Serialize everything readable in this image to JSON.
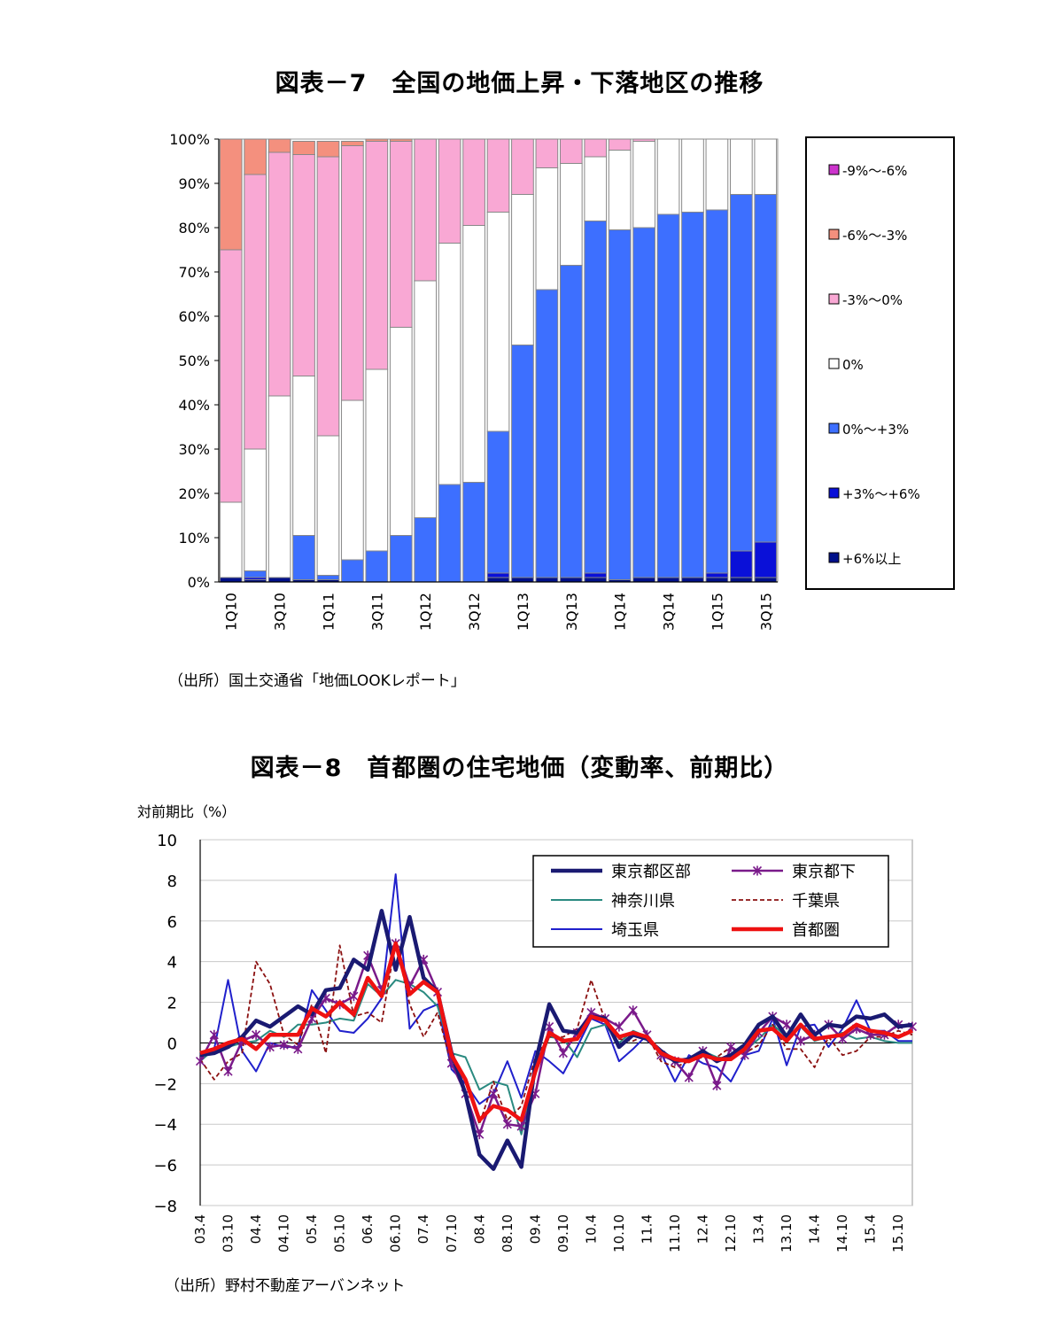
{
  "figure1": {
    "title": "図表－7　全国の地価上昇・下落地区の推移",
    "source": "（出所）国土交通省「地価LOOKレポート」",
    "colors": {
      "-9%～-6%": "#cc33cc",
      "-6%～-3%": "#f4907e",
      "-3%～0%": "#f9a8d4",
      "0%": "#ffffff",
      "0%～+3%": "#3d6fff",
      "+3%～+6%": "#0a10d8",
      "+6%以上": "#00108a"
    }
  },
  "figure2": {
    "title": "図表－8　首都圏の住宅地価（変動率、前期比）",
    "ylabel": "対前期比（%）",
    "source": "（出所）野村不動産アーバンネット",
    "colors": {
      "東京都区部": "#1a1a72",
      "東京都下": "#7a1a8a",
      "神奈川県": "#2a8a80",
      "千葉県": "#8b1010",
      "埼玉県": "#2020cc",
      "首都圏": "#ee1111"
    }
  },
  "chart_data": [
    {
      "type": "bar",
      "stacked": true,
      "title": "図表－7　全国の地価上昇・下落地区の推移",
      "categories": [
        "1Q10",
        "2Q10",
        "3Q10",
        "4Q10",
        "1Q11",
        "2Q11",
        "3Q11",
        "4Q11",
        "1Q12",
        "2Q12",
        "3Q12",
        "4Q12",
        "1Q13",
        "2Q13",
        "3Q13",
        "4Q13",
        "1Q14",
        "2Q14",
        "3Q14",
        "4Q14",
        "1Q15",
        "2Q15",
        "3Q15"
      ],
      "x_tick_labels": [
        "1Q10",
        "3Q10",
        "1Q11",
        "3Q11",
        "1Q12",
        "3Q12",
        "1Q13",
        "3Q13",
        "1Q14",
        "3Q14",
        "1Q15",
        "3Q15"
      ],
      "y_ticks": [
        "0%",
        "10%",
        "20%",
        "30%",
        "40%",
        "50%",
        "60%",
        "70%",
        "80%",
        "90%",
        "100%"
      ],
      "ylim": [
        0,
        100
      ],
      "grid": false,
      "legend_position": "right",
      "series": [
        {
          "name": "+6%以上",
          "values": [
            1,
            0.5,
            1,
            0.5,
            0.5,
            0,
            0,
            0,
            0,
            0,
            0,
            1,
            1,
            1,
            1,
            1,
            0.5,
            1,
            1,
            1,
            1,
            1,
            1
          ]
        },
        {
          "name": "+3%～+6%",
          "values": [
            0,
            0.5,
            0,
            0,
            0,
            0,
            0,
            0,
            0,
            0,
            0,
            1,
            0,
            0,
            0,
            1,
            0,
            0,
            0,
            0,
            1,
            6,
            8
          ]
        },
        {
          "name": "0%～+3%",
          "values": [
            0,
            1.5,
            0,
            10,
            1,
            5,
            7,
            10.5,
            14.5,
            22,
            22.5,
            32,
            52.5,
            65,
            70.5,
            79.5,
            79,
            79,
            82,
            82.5,
            82,
            80.5,
            78.5
          ]
        },
        {
          "name": "0%",
          "values": [
            17,
            27.5,
            41,
            36,
            31.5,
            36,
            41,
            47,
            53.5,
            54.5,
            58,
            49.5,
            34,
            27.5,
            23,
            14.5,
            18,
            19.5,
            17,
            16.5,
            16,
            12.5,
            12.5
          ]
        },
        {
          "name": "-3%～0%",
          "values": [
            57,
            62,
            55,
            50,
            63,
            57.5,
            51.5,
            42,
            32,
            23.5,
            19.5,
            16.5,
            12.5,
            6.5,
            5.5,
            4,
            2.5,
            0.5,
            0,
            0,
            0,
            0,
            0
          ]
        },
        {
          "name": "-6%～-3%",
          "values": [
            25,
            8,
            3,
            3,
            3.5,
            1,
            0.5,
            0.5,
            0,
            0,
            0,
            0,
            0,
            0,
            0,
            0,
            0,
            0,
            0,
            0,
            0,
            0,
            0
          ]
        },
        {
          "name": "-9%～-6%",
          "values": [
            0,
            0,
            0,
            0,
            0,
            0,
            0,
            0,
            0,
            0,
            0,
            0,
            0,
            0,
            0,
            0,
            0,
            0,
            0,
            0,
            0,
            0,
            0
          ]
        }
      ]
    },
    {
      "type": "line",
      "title": "図表－8　首都圏の住宅地価（変動率、前期比）",
      "ylabel": "対前期比（%）",
      "ylim": [
        -8,
        10
      ],
      "y_ticks": [
        10,
        8,
        6,
        4,
        2,
        0,
        -2,
        -4,
        -6,
        -8
      ],
      "grid": true,
      "legend_position": "top-right",
      "x": [
        "03.4",
        "03.7",
        "03.10",
        "04.1",
        "04.4",
        "04.7",
        "04.10",
        "05.1",
        "05.4",
        "05.7",
        "05.10",
        "06.1",
        "06.4",
        "06.7",
        "06.10",
        "07.1",
        "07.4",
        "07.7",
        "07.10",
        "08.1",
        "08.4",
        "08.7",
        "08.10",
        "09.1",
        "09.4",
        "09.7",
        "09.10",
        "10.1",
        "10.4",
        "10.7",
        "10.10",
        "11.1",
        "11.4",
        "11.7",
        "11.10",
        "12.1",
        "12.4",
        "12.7",
        "12.10",
        "13.1",
        "13.4",
        "13.7",
        "13.10",
        "14.1",
        "14.4",
        "14.7",
        "14.10",
        "15.1",
        "15.4",
        "15.7",
        "15.10",
        "16.1"
      ],
      "x_tick_labels": [
        "03.4",
        "03.10",
        "04.4",
        "04.10",
        "05.4",
        "05.10",
        "06.4",
        "06.10",
        "07.4",
        "07.10",
        "08.4",
        "08.10",
        "09.4",
        "09.10",
        "10.4",
        "10.10",
        "11.4",
        "11.10",
        "12.4",
        "12.10",
        "13.4",
        "13.10",
        "14.4",
        "14.10",
        "15.4",
        "15.10"
      ],
      "series": [
        {
          "name": "東京都区部",
          "values": [
            -0.6,
            -0.5,
            -0.2,
            0.3,
            1.1,
            0.8,
            1.3,
            1.8,
            1.4,
            2.6,
            2.7,
            4.1,
            3.6,
            6.5,
            3.6,
            6.2,
            3.2,
            2.5,
            -0.5,
            -2.5,
            -5.5,
            -6.2,
            -4.8,
            -6.1,
            -1,
            1.9,
            0.6,
            0.5,
            1.3,
            1.2,
            -0.2,
            0.4,
            0.2,
            -0.4,
            -0.9,
            -0.8,
            -0.4,
            -0.9,
            -0.6,
            -0.1,
            0.9,
            1.3,
            0.3,
            1.4,
            0.4,
            0.9,
            0.8,
            1.3,
            1.2,
            1.4,
            0.8,
            0.9
          ]
        },
        {
          "name": "東京都下",
          "values": [
            -0.9,
            0.4,
            -1.4,
            0.1,
            0.4,
            -0.2,
            -0.1,
            -0.3,
            1.2,
            2.2,
            1.9,
            2.3,
            4.3,
            2.6,
            4.9,
            2.8,
            4.1,
            2.5,
            -1,
            -2.5,
            -4.5,
            -2.5,
            -4,
            -4.1,
            -2.5,
            0.8,
            -0.5,
            0.5,
            1.5,
            1.2,
            0.8,
            1.6,
            0.4,
            -0.6,
            -0.9,
            -1.7,
            -0.4,
            -2.1,
            -0.2,
            -0.6,
            0.5,
            1.3,
            0.9,
            0.1,
            0.4,
            0.9,
            0.2,
            0.7,
            0.4,
            0.4,
            0.9,
            0.8
          ]
        },
        {
          "name": "神奈川県",
          "values": [
            -0.9,
            -0.3,
            -0.2,
            0,
            0.1,
            0.6,
            0.3,
            0.9,
            0.9,
            1,
            1.2,
            1.1,
            2.9,
            2.3,
            3.1,
            2.9,
            2.5,
            1.8,
            -0.5,
            -0.7,
            -2.3,
            -1.9,
            -2.1,
            -4.5,
            -1.5,
            0.3,
            0.2,
            -0.7,
            0.7,
            0.9,
            0,
            0.6,
            0.3,
            -0.6,
            -0.8,
            -0.9,
            -0.4,
            -0.7,
            -0.8,
            -0.4,
            0.2,
            0.9,
            0.3,
            0.8,
            0.1,
            0.3,
            0.5,
            0.2,
            0.3,
            0.1,
            0,
            0
          ]
        },
        {
          "name": "千葉県",
          "values": [
            -0.8,
            -1.8,
            -0.9,
            -0.5,
            4,
            2.9,
            0.4,
            -0.1,
            1.9,
            -0.5,
            4.8,
            1.3,
            1.5,
            1,
            5,
            1.9,
            0.3,
            1.5,
            -1.1,
            -1.8,
            -4,
            -1.9,
            -3.8,
            -3.1,
            -0.7,
            0.3,
            0.3,
            0.7,
            3.1,
            1.1,
            0.2,
            0.1,
            0.4,
            -0.9,
            -1.2,
            -0.9,
            -0.7,
            -0.7,
            -0.2,
            -0.5,
            -0.1,
            0.9,
            -0.3,
            -0.3,
            -1.2,
            0.3,
            -0.6,
            -0.4,
            0.3,
            0.3,
            0.6,
            0.4
          ]
        },
        {
          "name": "埼玉県",
          "values": [
            -0.6,
            -0.3,
            3.1,
            -0.4,
            -1.4,
            0,
            -0.2,
            -0.2,
            2.6,
            1.6,
            0.6,
            0.5,
            1.2,
            2.2,
            8.3,
            0.7,
            1.6,
            1.9,
            -1.3,
            -2,
            -3,
            -2.5,
            -0.9,
            -2.7,
            -0.4,
            -0.9,
            -1.5,
            -0.2,
            1.2,
            0.9,
            -0.9,
            -0.3,
            0.4,
            -0.5,
            -1.9,
            -0.6,
            -1,
            -1.2,
            -1.9,
            -0.6,
            -0.4,
            1.2,
            -1.1,
            0.8,
            0.9,
            -0.2,
            0.7,
            2.1,
            0.6,
            0.6,
            0.1,
            0.1
          ]
        },
        {
          "name": "首都圏",
          "values": [
            -0.5,
            -0.3,
            0,
            0.2,
            -0.3,
            0.4,
            0.4,
            0.4,
            1.7,
            1.3,
            2,
            1.4,
            3.2,
            2.3,
            4.9,
            2.4,
            3,
            2.5,
            -0.6,
            -1.8,
            -3.8,
            -3.1,
            -3.3,
            -3.8,
            -1.4,
            0.5,
            0.1,
            0.2,
            1.3,
            1.1,
            0.3,
            0.5,
            0.3,
            -0.5,
            -0.8,
            -0.9,
            -0.6,
            -0.8,
            -0.8,
            -0.3,
            0.6,
            0.7,
            0.1,
            0.9,
            0.2,
            0.3,
            0.4,
            0.9,
            0.6,
            0.5,
            0.3,
            0.6
          ]
        }
      ]
    }
  ]
}
